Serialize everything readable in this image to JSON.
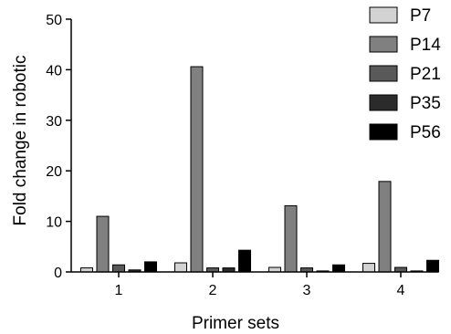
{
  "chart_data": {
    "type": "bar",
    "xlabel": "Primer sets",
    "ylabel": "Fold change in robotic",
    "ylim": [
      0,
      50
    ],
    "yticks": [
      0,
      10,
      20,
      30,
      40,
      50
    ],
    "categories": [
      "1",
      "2",
      "3",
      "4"
    ],
    "grid": false,
    "legend_position": "top-right",
    "series": [
      {
        "name": "P7",
        "color": "#d3d3d3",
        "values": [
          0.8,
          1.8,
          0.9,
          1.7
        ]
      },
      {
        "name": "P14",
        "color": "#808080",
        "values": [
          11.0,
          40.6,
          13.1,
          17.9
        ]
      },
      {
        "name": "P21",
        "color": "#595959",
        "values": [
          1.4,
          0.8,
          0.8,
          0.9
        ]
      },
      {
        "name": "P35",
        "color": "#2b2b2b",
        "values": [
          0.4,
          0.8,
          0.2,
          0.2
        ]
      },
      {
        "name": "P56",
        "color": "#000000",
        "values": [
          2.0,
          4.3,
          1.4,
          2.3
        ]
      }
    ]
  }
}
